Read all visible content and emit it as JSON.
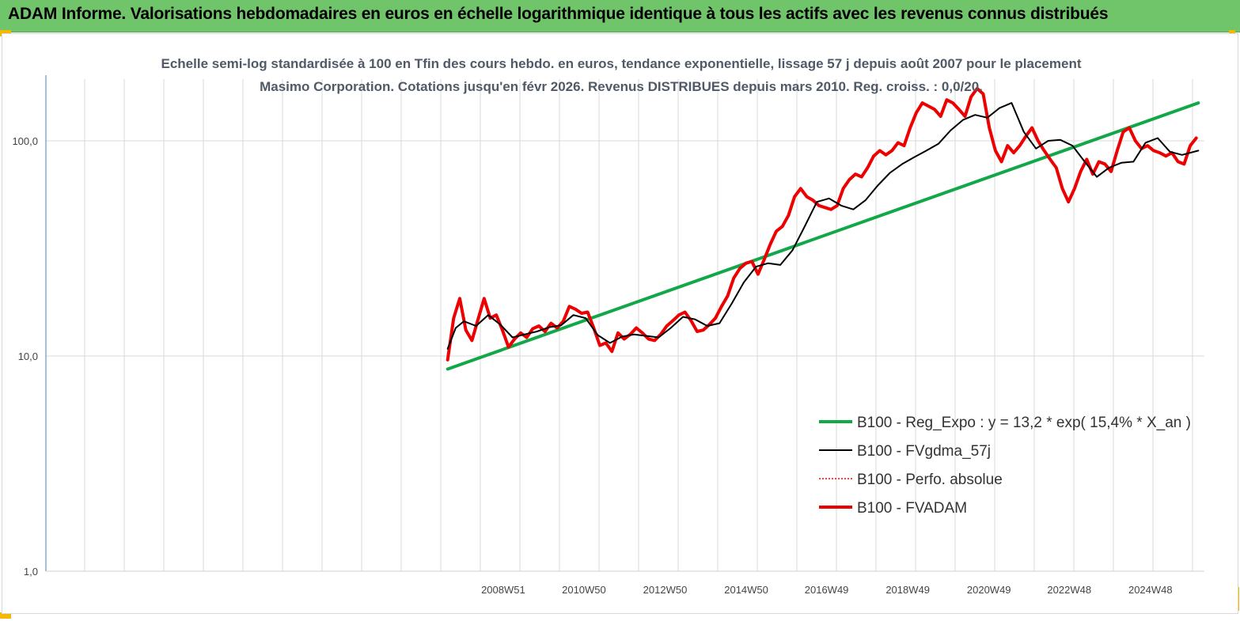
{
  "header": {
    "title": "ADAM Informe. Valorisations hebdomadaires en euros en échelle logarithmique identique à tous les actifs avec les revenus connus distribués"
  },
  "chart_data": {
    "type": "line",
    "title": "Echelle semi-log standardisée à 100 en Tfin des cours hebdo. en euros, tendance exponentielle, lissage 57 j depuis août 2007 pour le placement Masimo Corporation. Cotations jusqu'en févr 2026. Revenus DISTRIBUES depuis mars 2010. Reg. croiss. : 0,0/20.",
    "y_scale": "log",
    "ylim": [
      1,
      200
    ],
    "y_ticks": [
      "1,0",
      "10,0",
      "100,0"
    ],
    "x_tick_labels": [
      "2008W51",
      "2010W50",
      "2012W50",
      "2014W50",
      "2016W49",
      "2018W49",
      "2020W49",
      "2022W48",
      "2024W48"
    ],
    "x_tick_years": [
      2008.97,
      2010.96,
      2012.96,
      2014.96,
      2016.94,
      2018.94,
      2020.94,
      2022.92,
      2024.92
    ],
    "xlim": [
      1997.7,
      2026.25
    ],
    "grid": "vertical",
    "legend_position": "center-right",
    "series": [
      {
        "name": "B100 - Reg_Expo : y = 13,2 * exp( 15,4% *  X_an )",
        "color": "#12a84a",
        "style": "solid-thick",
        "x": [
          2007.6,
          2026.1
        ],
        "y": [
          8.7,
          150
        ]
      },
      {
        "name": "B100 - FVgdma_57j",
        "color": "#000000",
        "style": "solid-thin",
        "x": [
          2007.6,
          2007.8,
          2008.0,
          2008.3,
          2008.6,
          2008.9,
          2009.2,
          2009.5,
          2009.8,
          2010.1,
          2010.4,
          2010.7,
          2011.0,
          2011.3,
          2011.6,
          2011.9,
          2012.2,
          2012.5,
          2012.8,
          2013.1,
          2013.4,
          2013.7,
          2014.0,
          2014.3,
          2014.6,
          2014.9,
          2015.2,
          2015.5,
          2015.8,
          2016.1,
          2016.4,
          2016.7,
          2017.0,
          2017.3,
          2017.6,
          2017.9,
          2018.2,
          2018.5,
          2018.8,
          2019.1,
          2019.4,
          2019.7,
          2020.0,
          2020.3,
          2020.6,
          2020.9,
          2021.2,
          2021.5,
          2021.8,
          2022.1,
          2022.4,
          2022.7,
          2023.0,
          2023.3,
          2023.6,
          2023.9,
          2024.2,
          2024.5,
          2024.8,
          2025.1,
          2025.4,
          2025.7,
          2026.1
        ],
        "y": [
          10.8,
          13.5,
          14.5,
          13.8,
          15.5,
          14.0,
          12.2,
          12.6,
          13.0,
          13.6,
          13.9,
          15.5,
          15.0,
          12.5,
          11.5,
          12.3,
          12.6,
          12.4,
          12.2,
          13.5,
          15.2,
          14.8,
          13.8,
          14.2,
          17.5,
          22.0,
          26.0,
          27.0,
          26.5,
          31.0,
          40.0,
          52.0,
          54.0,
          50.0,
          48.0,
          53.0,
          62.0,
          71.0,
          78.0,
          84.0,
          90.0,
          97.0,
          112.0,
          125.0,
          132.0,
          128.0,
          142.0,
          150.0,
          110.0,
          92.0,
          100.0,
          101.0,
          95.0,
          80.0,
          68.0,
          75.0,
          79.0,
          80.0,
          98.0,
          103.0,
          89.0,
          86.0,
          90.0
        ]
      },
      {
        "name": "B100 - Perfo. absolue",
        "color": "#ff0000",
        "style": "dotted",
        "x": [],
        "y": []
      },
      {
        "name": "B100 - FVADAM",
        "color": "#ee0000",
        "style": "solid-thick",
        "x": [
          2007.6,
          2007.75,
          2007.9,
          2008.05,
          2008.2,
          2008.35,
          2008.5,
          2008.65,
          2008.8,
          2008.95,
          2009.1,
          2009.25,
          2009.4,
          2009.55,
          2009.7,
          2009.85,
          2010.0,
          2010.15,
          2010.3,
          2010.45,
          2010.6,
          2010.75,
          2010.9,
          2011.05,
          2011.2,
          2011.35,
          2011.5,
          2011.65,
          2011.8,
          2011.95,
          2012.1,
          2012.25,
          2012.4,
          2012.55,
          2012.7,
          2012.85,
          2013.0,
          2013.15,
          2013.3,
          2013.45,
          2013.6,
          2013.75,
          2013.9,
          2014.05,
          2014.2,
          2014.35,
          2014.5,
          2014.65,
          2014.8,
          2014.95,
          2015.1,
          2015.25,
          2015.4,
          2015.55,
          2015.7,
          2015.85,
          2016.0,
          2016.15,
          2016.3,
          2016.45,
          2016.6,
          2016.75,
          2016.9,
          2017.05,
          2017.2,
          2017.35,
          2017.5,
          2017.65,
          2017.8,
          2017.95,
          2018.1,
          2018.25,
          2018.4,
          2018.55,
          2018.7,
          2018.85,
          2019.0,
          2019.15,
          2019.3,
          2019.45,
          2019.6,
          2019.75,
          2019.9,
          2020.05,
          2020.2,
          2020.35,
          2020.5,
          2020.65,
          2020.8,
          2020.95,
          2021.1,
          2021.25,
          2021.4,
          2021.55,
          2021.7,
          2021.85,
          2022.0,
          2022.15,
          2022.3,
          2022.45,
          2022.6,
          2022.75,
          2022.9,
          2023.05,
          2023.2,
          2023.35,
          2023.5,
          2023.65,
          2023.8,
          2023.95,
          2024.1,
          2024.25,
          2024.4,
          2024.55,
          2024.7,
          2024.85,
          2025.0,
          2025.15,
          2025.3,
          2025.45,
          2025.6,
          2025.75,
          2025.9,
          2026.05
        ],
        "y": [
          9.6,
          15.0,
          18.5,
          13.2,
          11.8,
          14.8,
          18.5,
          15.0,
          15.5,
          13.2,
          11.0,
          12.0,
          12.8,
          12.2,
          13.4,
          13.8,
          13.0,
          14.2,
          13.5,
          14.5,
          17.0,
          16.5,
          15.8,
          16.0,
          13.5,
          11.2,
          11.5,
          10.5,
          12.8,
          12.0,
          12.6,
          13.5,
          12.8,
          12.0,
          11.8,
          12.6,
          13.8,
          14.6,
          15.5,
          16.0,
          14.6,
          13.0,
          13.2,
          14.0,
          15.0,
          17.0,
          19.0,
          23.0,
          25.5,
          27.0,
          27.5,
          24.0,
          28.0,
          33.0,
          38.0,
          40.0,
          45.0,
          55.0,
          60.0,
          55.0,
          53.0,
          50.0,
          49.0,
          48.0,
          50.0,
          60.0,
          66.0,
          70.0,
          68.0,
          75.0,
          85.0,
          90.0,
          86.0,
          90.0,
          98.0,
          95.0,
          115.0,
          135.0,
          150.0,
          145.0,
          140.0,
          130.0,
          155.0,
          150.0,
          140.0,
          130.0,
          160.0,
          175.0,
          165.0,
          115.0,
          90.0,
          80.0,
          95.0,
          88.0,
          95.0,
          105.0,
          115.0,
          100.0,
          90.0,
          82.0,
          75.0,
          60.0,
          52.0,
          60.0,
          72.0,
          82.0,
          70.0,
          80.0,
          78.0,
          72.0,
          90.0,
          110.0,
          115.0,
          100.0,
          92.0,
          95.0,
          90.0,
          88.0,
          85.0,
          88.0,
          80.0,
          78.0,
          95.0,
          103.0
        ]
      }
    ]
  }
}
